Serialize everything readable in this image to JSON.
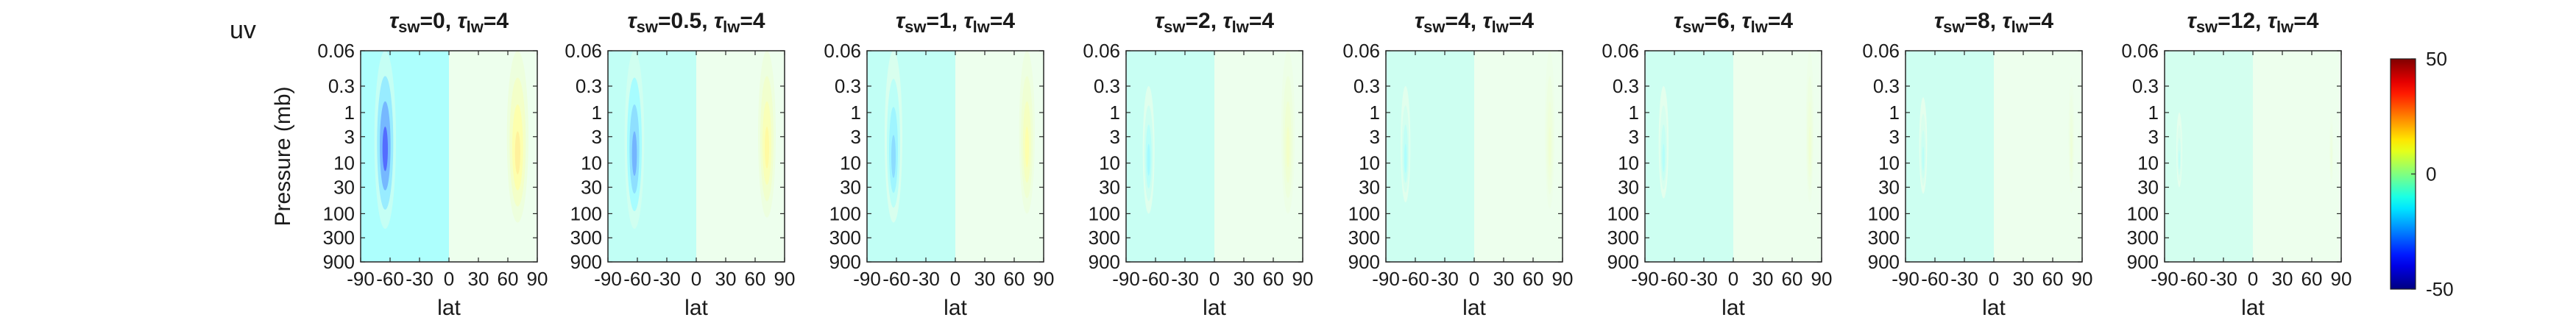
{
  "figure_label": "uv",
  "chart_data": {
    "type": "heatmap",
    "variable_label": "uv",
    "xlabel": "lat",
    "ylabel": "Pressure (mb)",
    "x_ticks": [
      -90,
      -60,
      -30,
      0,
      30,
      60,
      90
    ],
    "x_tick_labels": [
      "-90",
      "-60",
      "-30",
      "0",
      "30",
      "60",
      "90"
    ],
    "y_ticks": [
      0.06,
      0.3,
      1,
      3,
      10,
      30,
      100,
      300,
      900
    ],
    "y_tick_labels": [
      "0.06",
      "0.3",
      "1",
      "3",
      "10",
      "30",
      "100",
      "300",
      "900"
    ],
    "y_scale": "log",
    "y_reversed": true,
    "xlim": [
      -90,
      90
    ],
    "ylim": [
      0.06,
      900
    ],
    "colorbar": {
      "colormap": "jet",
      "range": [
        -50,
        50
      ],
      "tick_labels": [
        "50",
        "0",
        "-50"
      ],
      "ticks": [
        50,
        0,
        -50
      ]
    },
    "panels": [
      {
        "tau_sw": "0",
        "tau_lw": "4",
        "background_sh": -12,
        "background_nh": 0,
        "sh_jet": {
          "lat": -65,
          "width": 11,
          "peak": -34,
          "core_p": 6,
          "top": 0.06,
          "bottom": 200
        },
        "nh_jet": {
          "lat": 70,
          "width": 11,
          "peak": 16,
          "core_p": 8,
          "top": 0.06,
          "bottom": 150
        }
      },
      {
        "tau_sw": "0.5",
        "tau_lw": "4",
        "background_sh": -9,
        "background_nh": 0,
        "sh_jet": {
          "lat": -63,
          "width": 10,
          "peak": -26,
          "core_p": 8,
          "top": 0.06,
          "bottom": 200
        },
        "nh_jet": {
          "lat": 72,
          "width": 9,
          "peak": 14,
          "core_p": 6,
          "top": 0.06,
          "bottom": 120
        }
      },
      {
        "tau_sw": "1",
        "tau_lw": "4",
        "background_sh": -9,
        "background_nh": 0,
        "sh_jet": {
          "lat": -63,
          "width": 9,
          "peak": -20,
          "core_p": 10,
          "top": 0.06,
          "bottom": 150
        },
        "nh_jet": {
          "lat": 73,
          "width": 8,
          "peak": 12,
          "core_p": 6,
          "top": 0.06,
          "bottom": 100
        }
      },
      {
        "tau_sw": "2",
        "tau_lw": "4",
        "background_sh": -8,
        "background_nh": 0,
        "sh_jet": {
          "lat": -67,
          "width": 6,
          "peak": -14,
          "core_p": 10,
          "top": 0.3,
          "bottom": 100
        },
        "nh_jet": {
          "lat": 75,
          "width": 7,
          "peak": 8,
          "core_p": 6,
          "top": 0.06,
          "bottom": 100
        }
      },
      {
        "tau_sw": "4",
        "tau_lw": "4",
        "background_sh": -7,
        "background_nh": 0,
        "sh_jet": {
          "lat": -70,
          "width": 5,
          "peak": -12,
          "core_p": 10,
          "top": 0.3,
          "bottom": 60
        },
        "nh_jet": {
          "lat": 77,
          "width": 5,
          "peak": 6,
          "core_p": 6,
          "top": 0.06,
          "bottom": 80
        }
      },
      {
        "tau_sw": "6",
        "tau_lw": "4",
        "background_sh": -7,
        "background_nh": 0,
        "sh_jet": {
          "lat": -71,
          "width": 5,
          "peak": -11,
          "core_p": 10,
          "top": 0.3,
          "bottom": 50
        },
        "nh_jet": {
          "lat": 78,
          "width": 4,
          "peak": 6,
          "core_p": 6,
          "top": 0.06,
          "bottom": 60
        }
      },
      {
        "tau_sw": "8",
        "tau_lw": "4",
        "background_sh": -7,
        "background_nh": 0,
        "sh_jet": {
          "lat": -72,
          "width": 4,
          "peak": -10,
          "core_p": 10,
          "top": 0.5,
          "bottom": 40
        },
        "nh_jet": {
          "lat": 79,
          "width": 3,
          "peak": 5,
          "core_p": 6,
          "top": 0.2,
          "bottom": 40
        }
      },
      {
        "tau_sw": "12",
        "tau_lw": "4",
        "background_sh": -6,
        "background_nh": 0,
        "sh_jet": {
          "lat": -75,
          "width": 3,
          "peak": -9,
          "core_p": 10,
          "top": 1,
          "bottom": 30
        },
        "nh_jet": {
          "lat": 80,
          "width": 2,
          "peak": 4,
          "core_p": 8,
          "top": 1,
          "bottom": 30
        }
      }
    ]
  }
}
